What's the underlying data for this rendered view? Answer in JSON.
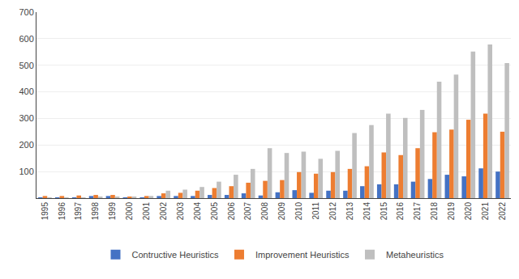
{
  "chart_data": {
    "type": "bar",
    "categories": [
      "1995",
      "1996",
      "1997",
      "1998",
      "1999",
      "2000",
      "2001",
      "2002",
      "2003",
      "2004",
      "2005",
      "2006",
      "2007",
      "2008",
      "2009",
      "2010",
      "2011",
      "2012",
      "2013",
      "2014",
      "2015",
      "2016",
      "2017",
      "2018",
      "2019",
      "2020",
      "2021",
      "2022"
    ],
    "series": [
      {
        "name": "Contructive Heuristics",
        "color": "#4472C4",
        "values": [
          2,
          2,
          3,
          8,
          8,
          2,
          3,
          8,
          8,
          8,
          12,
          12,
          18,
          10,
          22,
          30,
          20,
          28,
          28,
          45,
          52,
          52,
          62,
          72,
          88,
          82,
          112,
          100
        ]
      },
      {
        "name": "Improvement Heuristics",
        "color": "#ED7D31",
        "values": [
          8,
          8,
          10,
          12,
          12,
          5,
          8,
          18,
          20,
          28,
          38,
          45,
          58,
          65,
          68,
          98,
          92,
          98,
          110,
          120,
          172,
          162,
          188,
          248,
          258,
          295,
          318,
          250
        ]
      },
      {
        "name": "Metaheuristics",
        "color": "#BFBFBF",
        "values": [
          2,
          2,
          2,
          5,
          5,
          5,
          8,
          28,
          32,
          42,
          62,
          88,
          110,
          188,
          170,
          175,
          148,
          178,
          245,
          275,
          318,
          302,
          332,
          438,
          465,
          552,
          578,
          508
        ]
      }
    ],
    "ylim": [
      0,
      700
    ],
    "yticks": [
      100,
      200,
      300,
      400,
      500,
      600,
      700
    ],
    "grid": true,
    "legend": "bottom"
  }
}
